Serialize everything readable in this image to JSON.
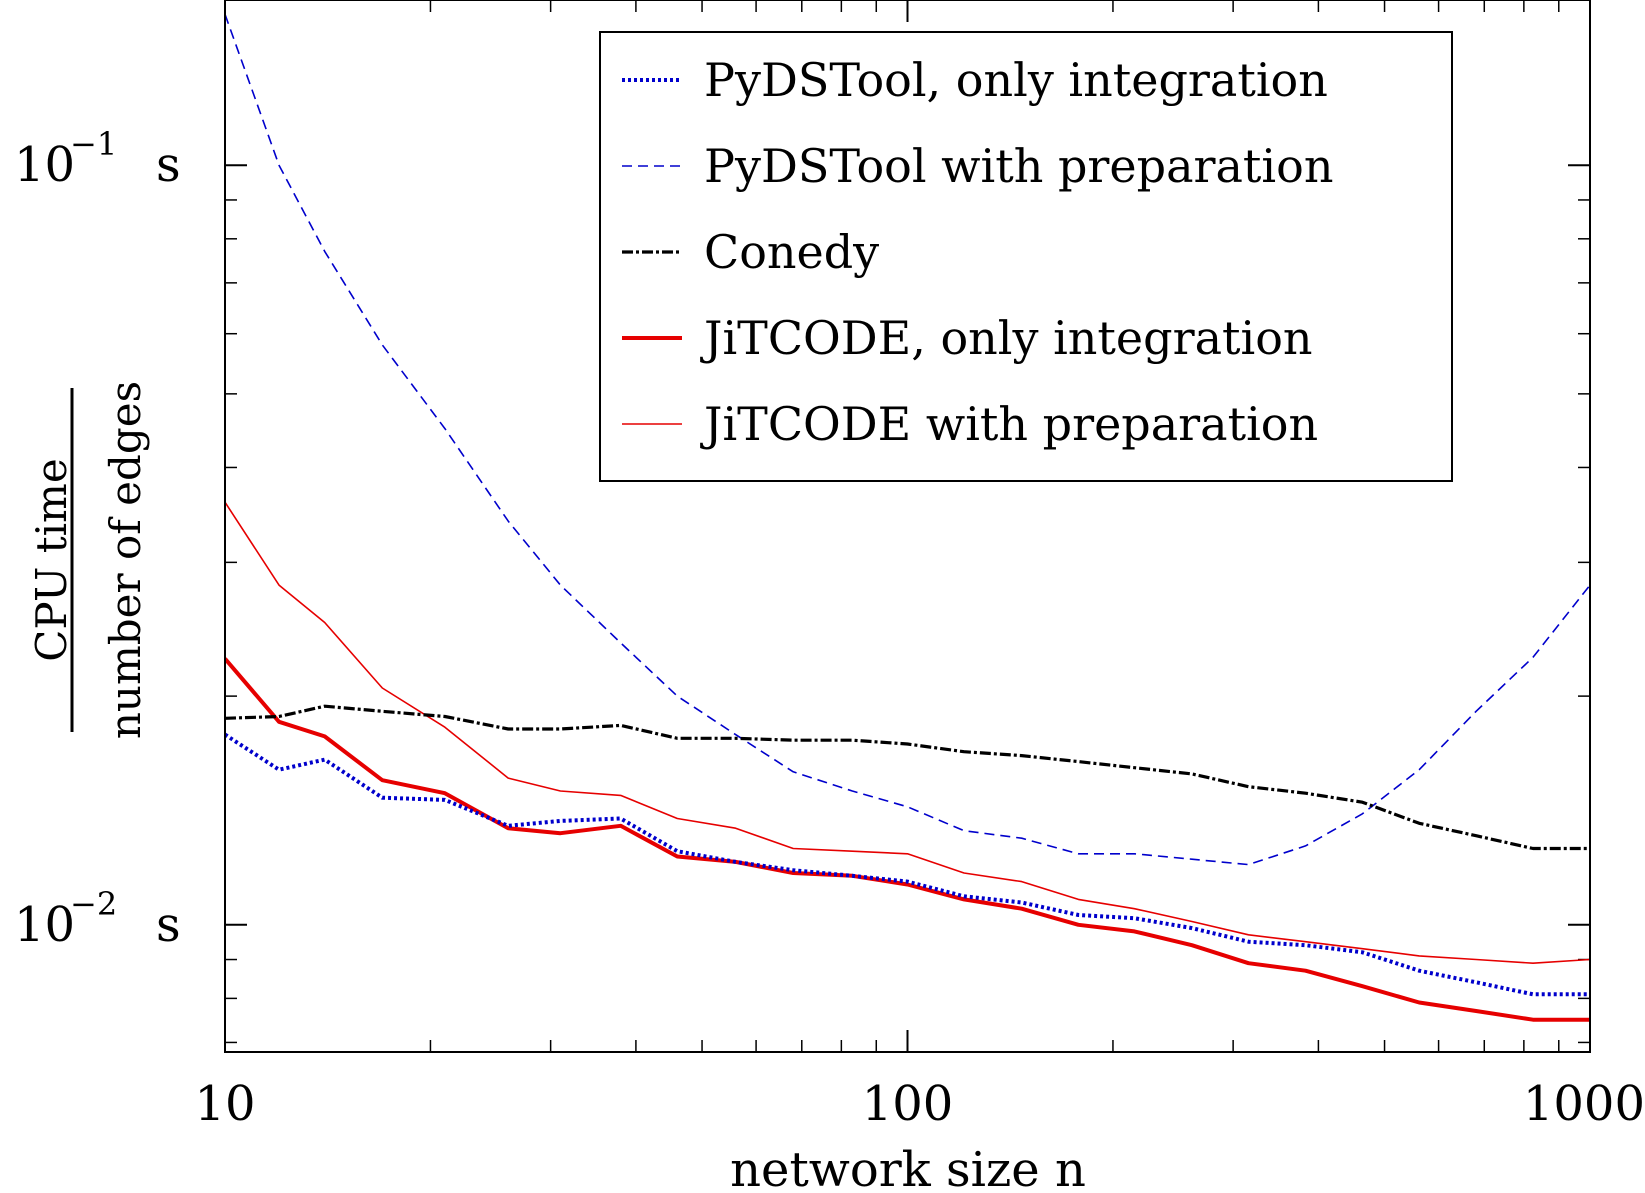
{
  "chart_data": {
    "type": "line",
    "xscale": "log",
    "yscale": "log",
    "xlim": [
      10,
      1000
    ],
    "ylim": [
      0.0068,
      0.165
    ],
    "xlabel": "network size n",
    "ylabel_numerator": "CPU time",
    "ylabel_denominator": "number of edges",
    "xticks": [
      {
        "value": 10,
        "label": "10"
      },
      {
        "value": 100,
        "label": "100"
      },
      {
        "value": 1000,
        "label": "1000"
      }
    ],
    "yticks": [
      {
        "value": 0.1,
        "label_base": "10",
        "label_exp": "−1",
        "label_unit": "s"
      },
      {
        "value": 0.01,
        "label_base": "10",
        "label_exp": "−2",
        "label_unit": "s"
      }
    ],
    "legend_position": "top-right",
    "series": [
      {
        "name": "PyDSTool, only integration",
        "color": "#0000cc",
        "style": "dotted",
        "width": 4,
        "x": [
          10,
          12,
          14,
          17,
          21,
          26,
          31,
          38,
          46,
          56,
          68,
          83,
          100,
          121,
          147,
          178,
          215,
          261,
          316,
          383,
          464,
          562,
          681,
          825,
          1000
        ],
        "y": [
          0.0178,
          0.016,
          0.0165,
          0.0147,
          0.0146,
          0.0135,
          0.0137,
          0.0138,
          0.0125,
          0.0121,
          0.0118,
          0.0116,
          0.0114,
          0.0109,
          0.0107,
          0.0103,
          0.0102,
          0.0099,
          0.0095,
          0.0094,
          0.0092,
          0.0087,
          0.0084,
          0.0081,
          0.0081
        ]
      },
      {
        "name": "PyDSTool with preparation",
        "color": "#0000cc",
        "style": "dashed",
        "width": 1.6,
        "x": [
          10,
          12,
          14,
          17,
          21,
          26,
          31,
          38,
          46,
          56,
          68,
          83,
          100,
          121,
          147,
          178,
          215,
          261,
          316,
          383,
          464,
          562,
          681,
          825,
          1000
        ],
        "y": [
          0.158,
          0.1,
          0.077,
          0.058,
          0.045,
          0.034,
          0.028,
          0.0235,
          0.02,
          0.0178,
          0.0159,
          0.015,
          0.0143,
          0.0133,
          0.013,
          0.0124,
          0.0124,
          0.0122,
          0.012,
          0.0127,
          0.014,
          0.016,
          0.0191,
          0.0225,
          0.028
        ]
      },
      {
        "name": "Conedy",
        "color": "#000000",
        "style": "dashdot",
        "width": 3.2,
        "x": [
          10,
          12,
          14,
          17,
          21,
          26,
          31,
          38,
          46,
          56,
          68,
          83,
          100,
          121,
          147,
          178,
          215,
          261,
          316,
          383,
          464,
          562,
          681,
          825,
          1000
        ],
        "y": [
          0.0187,
          0.0188,
          0.0194,
          0.0191,
          0.0188,
          0.0181,
          0.0181,
          0.0183,
          0.0176,
          0.0176,
          0.0175,
          0.0175,
          0.0173,
          0.0169,
          0.0167,
          0.0164,
          0.0161,
          0.0158,
          0.0152,
          0.0149,
          0.0145,
          0.0136,
          0.0131,
          0.0126,
          0.0126
        ]
      },
      {
        "name": "JiTCODE, only integration",
        "color": "#e60000",
        "style": "solid",
        "width": 4,
        "x": [
          10,
          12,
          14,
          17,
          21,
          26,
          31,
          38,
          46,
          56,
          68,
          83,
          100,
          121,
          147,
          178,
          215,
          261,
          316,
          383,
          464,
          562,
          681,
          825,
          1000
        ],
        "y": [
          0.0224,
          0.0185,
          0.0177,
          0.0155,
          0.0149,
          0.0134,
          0.0132,
          0.0135,
          0.0123,
          0.0121,
          0.0117,
          0.0116,
          0.0113,
          0.0108,
          0.0105,
          0.01,
          0.0098,
          0.0094,
          0.0089,
          0.0087,
          0.0083,
          0.0079,
          0.0077,
          0.0075,
          0.0075
        ]
      },
      {
        "name": "JiTCODE with preparation",
        "color": "#e60000",
        "style": "solid",
        "width": 1.6,
        "x": [
          10,
          12,
          14,
          17,
          21,
          26,
          31,
          38,
          46,
          56,
          68,
          83,
          100,
          121,
          147,
          178,
          215,
          261,
          316,
          383,
          464,
          562,
          681,
          825,
          1000
        ],
        "y": [
          0.036,
          0.028,
          0.025,
          0.0205,
          0.0182,
          0.0156,
          0.015,
          0.0148,
          0.0138,
          0.0134,
          0.0126,
          0.0125,
          0.0124,
          0.0117,
          0.0114,
          0.0108,
          0.0105,
          0.0101,
          0.0097,
          0.0095,
          0.0093,
          0.0091,
          0.009,
          0.0089,
          0.009
        ]
      }
    ]
  }
}
